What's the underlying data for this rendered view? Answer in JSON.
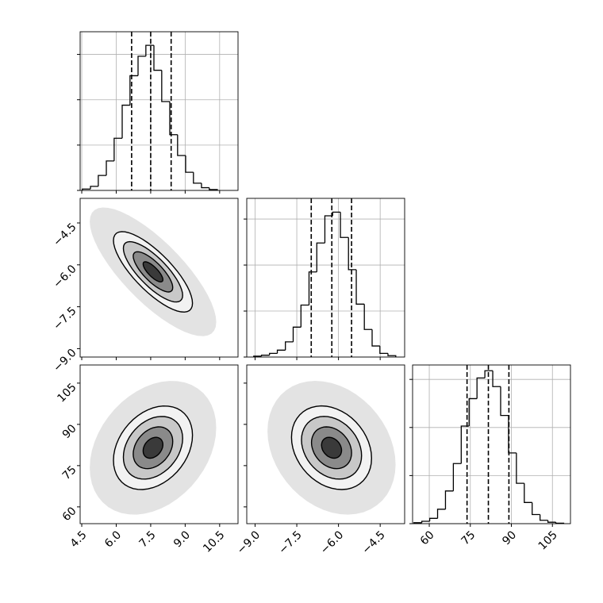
{
  "chart_data": [
    {
      "type": "histogram",
      "bins": [
        4.53,
        4.88,
        5.22,
        5.57,
        5.91,
        6.26,
        6.6,
        6.95,
        7.29,
        7.64,
        7.98,
        8.33,
        8.67,
        9.02,
        9.36,
        9.71,
        10.05,
        10.4
      ],
      "values": [
        30,
        90,
        330,
        650,
        1150,
        1880,
        2530,
        2960,
        3200,
        2650,
        1960,
        1230,
        770,
        400,
        160,
        60,
        20
      ],
      "color": "#000000",
      "quantiles": [
        6.67,
        7.5,
        8.39
      ],
      "xlim": [
        4.43,
        11.3
      ],
      "xticks": [
        4.5,
        6,
        7.5,
        9,
        10.5
      ],
      "xtick_labels": false,
      "ylim": [
        0,
        3500
      ],
      "yticks": [
        0,
        1000,
        2000,
        3000
      ],
      "ytick_labels": false,
      "grid": true
    },
    {
      "type": "density2d",
      "center": [
        7.6,
        -6.25
      ],
      "sd": [
        0.86,
        0.72
      ],
      "corr": -0.78,
      "levels": [
        0.5,
        1,
        1.5,
        2
      ],
      "cloud_level": 3.2,
      "level_colors": [
        "#3a3a3a",
        "#8a8a8a",
        "#c8c8c8",
        "#f2f2f2"
      ],
      "cloud_color": "#dcdcdc",
      "color": "#000000",
      "xlim": [
        4.43,
        11.3
      ],
      "xticks": [
        4.5,
        6,
        7.5,
        9,
        10.5
      ],
      "xtick_labels": false,
      "ylim": [
        -9.3,
        -3.62
      ],
      "yticks": [
        {
          "value": -9.0,
          "label": "−9.0"
        },
        {
          "value": -7.5,
          "label": "−7.5"
        },
        {
          "value": -6.0,
          "label": "−6.0"
        },
        {
          "value": -4.5,
          "label": "−4.5"
        }
      ],
      "ytick_labels": true,
      "grid": false
    },
    {
      "type": "histogram",
      "bins": [
        -9.05,
        -8.77,
        -8.48,
        -8.2,
        -7.91,
        -7.63,
        -7.35,
        -7.06,
        -6.78,
        -6.49,
        -6.21,
        -5.93,
        -5.64,
        -5.36,
        -5.07,
        -4.79,
        -4.51,
        -4.22,
        -3.94
      ],
      "values": [
        20,
        40,
        80,
        150,
        330,
        650,
        1130,
        1850,
        2480,
        3070,
        3150,
        2600,
        1900,
        1150,
        600,
        240,
        80,
        30
      ],
      "color": "#000000",
      "quantiles": [
        -6.98,
        -6.24,
        -5.53
      ],
      "xlim": [
        -9.3,
        -3.62
      ],
      "xticks": [
        -9,
        -7.5,
        -6,
        -4.5
      ],
      "xtick_labels": false,
      "ylim": [
        0,
        3450
      ],
      "yticks": [
        0,
        1000,
        2000,
        3000
      ],
      "ytick_labels": false,
      "grid": true
    },
    {
      "type": "density2d",
      "center": [
        7.6,
        81.5
      ],
      "sd": [
        0.86,
        7.6
      ],
      "corr": 0.3,
      "levels": [
        0.5,
        1,
        1.5,
        2
      ],
      "cloud_level": 3.2,
      "level_colors": [
        "#3a3a3a",
        "#8a8a8a",
        "#c8c8c8",
        "#f2f2f2"
      ],
      "cloud_color": "#dcdcdc",
      "color": "#000000",
      "xlim": [
        4.43,
        11.3
      ],
      "xticks": [
        4.5,
        {
          "value": 6,
          "label": "6.0"
        },
        7.5,
        {
          "value": 9,
          "label": "9.0"
        },
        10.5
      ],
      "xtick_labels": true,
      "ylim": [
        53.9,
        111.6
      ],
      "yticks": [
        60,
        75,
        90,
        105
      ],
      "ytick_labels": true,
      "grid": false
    },
    {
      "type": "density2d",
      "center": [
        -6.25,
        81.5
      ],
      "sd": [
        0.72,
        7.6
      ],
      "corr": -0.25,
      "levels": [
        0.5,
        1,
        1.5,
        2
      ],
      "cloud_level": 3.2,
      "level_colors": [
        "#3a3a3a",
        "#8a8a8a",
        "#c8c8c8",
        "#f2f2f2"
      ],
      "cloud_color": "#dcdcdc",
      "color": "#000000",
      "xlim": [
        -9.3,
        -3.62
      ],
      "xticks": [
        {
          "value": -9.0,
          "label": "−9.0"
        },
        {
          "value": -7.5,
          "label": "−7.5"
        },
        {
          "value": -6.0,
          "label": "−6.0"
        },
        {
          "value": -4.5,
          "label": "−4.5"
        }
      ],
      "xtick_labels": true,
      "ylim": [
        53.9,
        111.6
      ],
      "yticks": [
        60,
        75,
        90,
        105
      ],
      "ytick_labels": false,
      "grid": false
    },
    {
      "type": "histogram",
      "bins": [
        54.4,
        57.28,
        60.16,
        63.04,
        65.92,
        68.8,
        71.68,
        74.56,
        77.44,
        80.32,
        83.2,
        86.08,
        88.96,
        91.84,
        94.72,
        97.6,
        100.48,
        103.36,
        106.24,
        109.12
      ],
      "values": [
        20,
        50,
        110,
        300,
        680,
        1250,
        2030,
        2600,
        3030,
        3180,
        2850,
        2250,
        1470,
        840,
        440,
        190,
        70,
        30,
        10
      ],
      "color": "#000000",
      "quantiles": [
        73.8,
        81.6,
        89.1
      ],
      "xlim": [
        53.9,
        111.6
      ],
      "xticks": [
        60,
        75,
        90,
        105
      ],
      "xtick_labels": true,
      "ylim": [
        0,
        3300
      ],
      "yticks": [
        0,
        1000,
        2000,
        3000
      ],
      "ytick_labels": false,
      "grid": true
    }
  ]
}
